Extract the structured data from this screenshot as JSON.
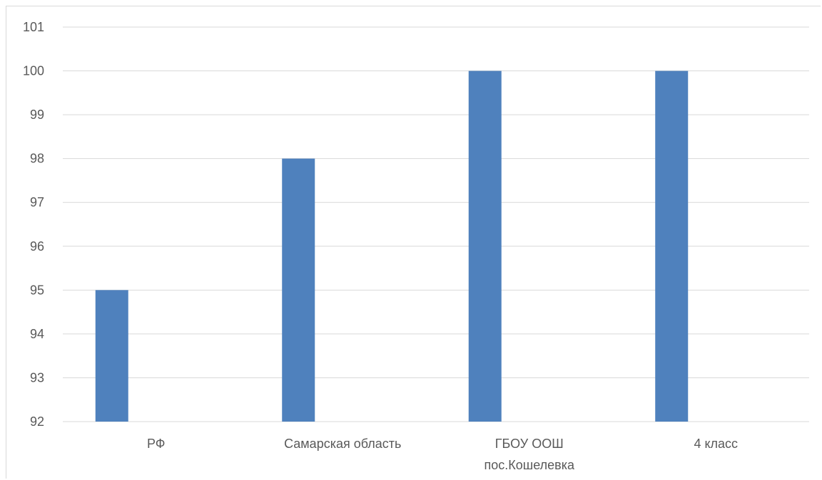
{
  "chart_data": {
    "type": "bar",
    "categories": [
      "РФ",
      "Самарская область",
      "ГБОУ ООШ пос.Кошелевка",
      "4 класс"
    ],
    "category_lines": [
      [
        "РФ"
      ],
      [
        "Самарская область"
      ],
      [
        "ГБОУ ООШ",
        "пос.Кошелевка"
      ],
      [
        "4 класс"
      ]
    ],
    "values": [
      95,
      98,
      100,
      100
    ],
    "ylim": [
      92,
      101
    ],
    "yticks": [
      92,
      93,
      94,
      95,
      96,
      97,
      98,
      99,
      100,
      101
    ],
    "grid": true,
    "legend": "none",
    "title": "",
    "xlabel": "",
    "ylabel": "",
    "colors": {
      "bar": "#4f81bd",
      "grid": "#d9d9d9",
      "text": "#595959"
    }
  }
}
